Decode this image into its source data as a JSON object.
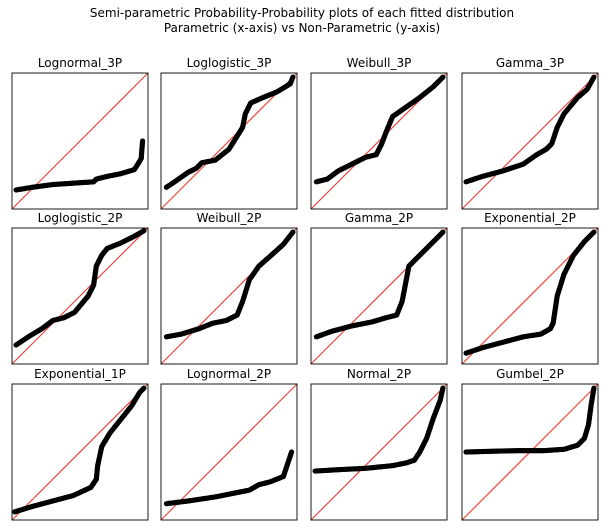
{
  "figure": {
    "title_line1": "Semi-parametric Probability-Probability plots of each fitted distribution",
    "title_line2": "Parametric (x-axis) vs Non-Parametric (y-axis)"
  },
  "colors": {
    "points": "#000000",
    "reference_line": "#e8473e",
    "axes": "#000000",
    "background": "#ffffff"
  },
  "chart_data": [
    {
      "type": "scatter",
      "title": "Lognormal_3P",
      "xlim": [
        0,
        1
      ],
      "ylim": [
        0,
        1
      ],
      "reference_line": "y = x",
      "xticks": "none",
      "yticks": "none",
      "x": [
        0.03,
        0.15,
        0.3,
        0.45,
        0.6,
        0.62,
        0.7,
        0.8,
        0.9,
        0.95,
        0.96
      ],
      "y": [
        0.14,
        0.16,
        0.18,
        0.19,
        0.2,
        0.22,
        0.24,
        0.26,
        0.29,
        0.37,
        0.5
      ]
    },
    {
      "type": "scatter",
      "title": "Loglogistic_3P",
      "xlim": [
        0,
        1
      ],
      "ylim": [
        0,
        1
      ],
      "reference_line": "y = x",
      "xticks": "none",
      "yticks": "none",
      "x": [
        0.04,
        0.1,
        0.2,
        0.26,
        0.3,
        0.4,
        0.5,
        0.55,
        0.6,
        0.62,
        0.66,
        0.75,
        0.85,
        0.95,
        0.97
      ],
      "y": [
        0.16,
        0.2,
        0.27,
        0.3,
        0.34,
        0.36,
        0.44,
        0.52,
        0.6,
        0.7,
        0.78,
        0.82,
        0.86,
        0.92,
        0.97
      ]
    },
    {
      "type": "scatter",
      "title": "Weibull_3P",
      "xlim": [
        0,
        1
      ],
      "ylim": [
        0,
        1
      ],
      "reference_line": "y = x",
      "xticks": "none",
      "yticks": "none",
      "x": [
        0.04,
        0.12,
        0.2,
        0.32,
        0.4,
        0.48,
        0.52,
        0.55,
        0.6,
        0.7,
        0.8,
        0.9,
        0.97
      ],
      "y": [
        0.2,
        0.22,
        0.28,
        0.34,
        0.38,
        0.4,
        0.48,
        0.56,
        0.68,
        0.75,
        0.82,
        0.9,
        0.97
      ]
    },
    {
      "type": "scatter",
      "title": "Gamma_3P",
      "xlim": [
        0,
        1
      ],
      "ylim": [
        0,
        1
      ],
      "reference_line": "y = x",
      "xticks": "none",
      "yticks": "none",
      "x": [
        0.03,
        0.15,
        0.3,
        0.45,
        0.55,
        0.62,
        0.66,
        0.7,
        0.75,
        0.8,
        0.85,
        0.92,
        0.97
      ],
      "y": [
        0.2,
        0.24,
        0.28,
        0.33,
        0.4,
        0.44,
        0.48,
        0.6,
        0.7,
        0.76,
        0.82,
        0.88,
        0.97
      ]
    },
    {
      "type": "scatter",
      "title": "Loglogistic_2P",
      "xlim": [
        0,
        1
      ],
      "ylim": [
        0,
        1
      ],
      "reference_line": "y = x",
      "xticks": "none",
      "yticks": "none",
      "x": [
        0.03,
        0.12,
        0.22,
        0.3,
        0.38,
        0.46,
        0.56,
        0.6,
        0.62,
        0.66,
        0.7,
        0.8,
        0.9,
        0.97
      ],
      "y": [
        0.14,
        0.2,
        0.26,
        0.32,
        0.34,
        0.38,
        0.5,
        0.58,
        0.72,
        0.8,
        0.85,
        0.89,
        0.94,
        0.98
      ]
    },
    {
      "type": "scatter",
      "title": "Weibull_2P",
      "xlim": [
        0,
        1
      ],
      "ylim": [
        0,
        1
      ],
      "reference_line": "y = x",
      "xticks": "none",
      "yticks": "none",
      "x": [
        0.04,
        0.15,
        0.28,
        0.38,
        0.48,
        0.56,
        0.6,
        0.65,
        0.72,
        0.8,
        0.9,
        0.97
      ],
      "y": [
        0.2,
        0.22,
        0.26,
        0.3,
        0.32,
        0.36,
        0.46,
        0.62,
        0.72,
        0.79,
        0.88,
        0.97
      ]
    },
    {
      "type": "scatter",
      "title": "Gamma_2P",
      "xlim": [
        0,
        1
      ],
      "ylim": [
        0,
        1
      ],
      "reference_line": "y = x",
      "xticks": "none",
      "yticks": "none",
      "x": [
        0.04,
        0.15,
        0.3,
        0.45,
        0.55,
        0.63,
        0.67,
        0.72,
        0.8,
        0.88,
        0.97
      ],
      "y": [
        0.2,
        0.24,
        0.28,
        0.31,
        0.34,
        0.36,
        0.46,
        0.72,
        0.8,
        0.88,
        0.97
      ]
    },
    {
      "type": "scatter",
      "title": "Exponential_2P",
      "xlim": [
        0,
        1
      ],
      "ylim": [
        0,
        1
      ],
      "reference_line": "y = x",
      "xticks": "none",
      "yticks": "none",
      "x": [
        0.03,
        0.15,
        0.3,
        0.45,
        0.58,
        0.65,
        0.67,
        0.7,
        0.75,
        0.82,
        0.9,
        0.97
      ],
      "y": [
        0.08,
        0.12,
        0.16,
        0.2,
        0.22,
        0.26,
        0.3,
        0.5,
        0.66,
        0.8,
        0.9,
        0.97
      ]
    },
    {
      "type": "scatter",
      "title": "Exponential_1P",
      "xlim": [
        0,
        1
      ],
      "ylim": [
        0,
        1
      ],
      "reference_line": "y = x",
      "xticks": "none",
      "yticks": "none",
      "x": [
        0.02,
        0.15,
        0.3,
        0.45,
        0.58,
        0.62,
        0.63,
        0.66,
        0.72,
        0.8,
        0.88,
        0.94,
        0.97
      ],
      "y": [
        0.06,
        0.1,
        0.14,
        0.18,
        0.24,
        0.3,
        0.4,
        0.54,
        0.64,
        0.74,
        0.84,
        0.94,
        0.97
      ]
    },
    {
      "type": "scatter",
      "title": "Lognormal_2P",
      "xlim": [
        0,
        1
      ],
      "ylim": [
        0,
        1
      ],
      "reference_line": "y = x",
      "xticks": "none",
      "yticks": "none",
      "x": [
        0.04,
        0.2,
        0.4,
        0.55,
        0.65,
        0.72,
        0.8,
        0.9,
        0.96
      ],
      "y": [
        0.12,
        0.14,
        0.17,
        0.2,
        0.22,
        0.26,
        0.28,
        0.32,
        0.5
      ]
    },
    {
      "type": "scatter",
      "title": "Normal_2P",
      "xlim": [
        0,
        1
      ],
      "ylim": [
        0,
        1
      ],
      "reference_line": "y = x",
      "xticks": "none",
      "yticks": "none",
      "x": [
        0.03,
        0.2,
        0.4,
        0.6,
        0.7,
        0.76,
        0.8,
        0.85,
        0.9,
        0.95,
        0.97
      ],
      "y": [
        0.36,
        0.37,
        0.38,
        0.4,
        0.42,
        0.44,
        0.5,
        0.6,
        0.75,
        0.88,
        0.97
      ]
    },
    {
      "type": "scatter",
      "title": "Gumbel_2P",
      "xlim": [
        0,
        1
      ],
      "ylim": [
        0,
        1
      ],
      "reference_line": "y = x",
      "xticks": "none",
      "yticks": "none",
      "x": [
        0.03,
        0.2,
        0.4,
        0.6,
        0.75,
        0.85,
        0.9,
        0.93,
        0.95,
        0.97
      ],
      "y": [
        0.5,
        0.505,
        0.51,
        0.51,
        0.52,
        0.55,
        0.6,
        0.7,
        0.85,
        0.97
      ]
    }
  ]
}
